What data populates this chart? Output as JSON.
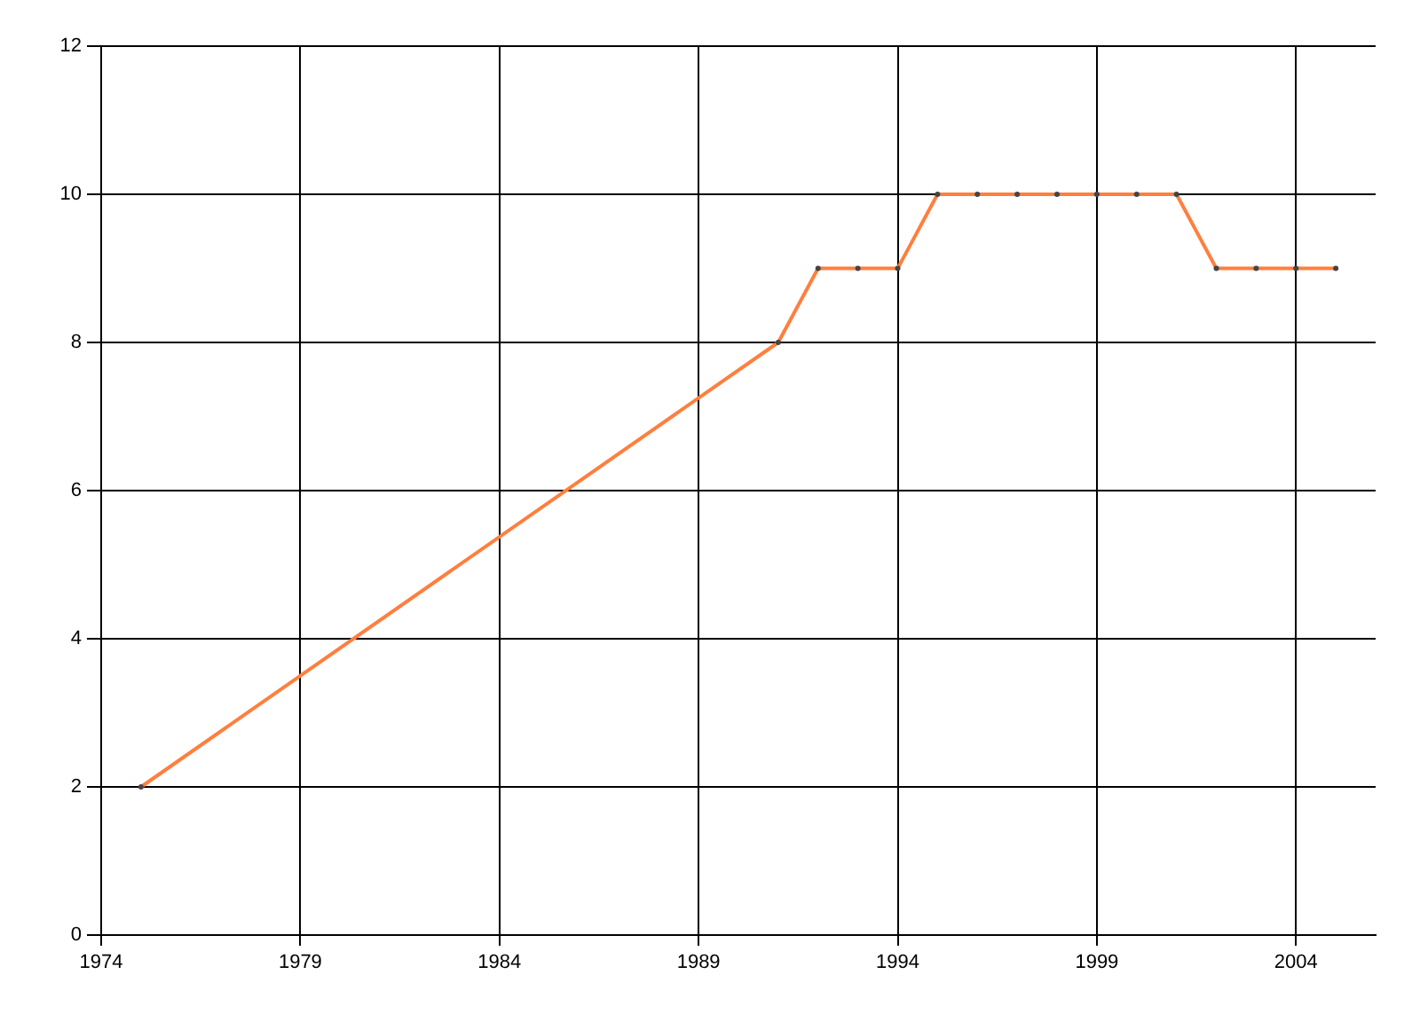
{
  "chart_data": {
    "type": "line",
    "x": [
      1975,
      1991,
      1992,
      1993,
      1994,
      1995,
      1996,
      1997,
      1998,
      1999,
      2000,
      2001,
      2002,
      2003,
      2004,
      2005
    ],
    "series": [
      {
        "color": "#ff7f3f",
        "values": [
          2,
          8,
          9,
          9,
          9,
          10,
          10,
          10,
          10,
          10,
          10,
          10,
          9,
          9,
          9,
          9
        ]
      }
    ],
    "xlim": [
      1974,
      2006
    ],
    "xticks": [
      1974,
      1979,
      1984,
      1989,
      1994,
      1999,
      2004
    ],
    "ylim": [
      0,
      12
    ],
    "yticks": [
      0,
      2,
      4,
      6,
      8,
      10,
      12
    ],
    "grid": true,
    "legend": false,
    "marker": "circle",
    "line_style": "solid"
  }
}
